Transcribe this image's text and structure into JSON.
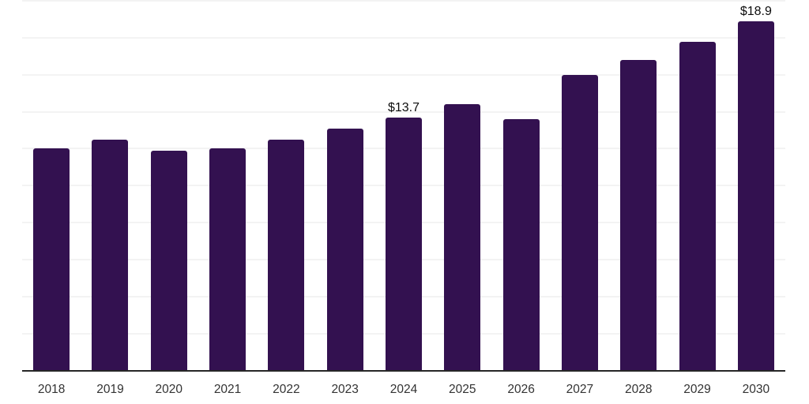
{
  "chart_data": {
    "type": "bar",
    "title": "",
    "xlabel": "",
    "ylabel": "",
    "categories": [
      "2018",
      "2019",
      "2020",
      "2021",
      "2022",
      "2023",
      "2024",
      "2025",
      "2026",
      "2027",
      "2028",
      "2029",
      "2030"
    ],
    "values": [
      12.0,
      12.5,
      11.9,
      12.0,
      12.5,
      13.1,
      13.7,
      14.4,
      13.6,
      16.0,
      16.8,
      17.8,
      18.9
    ],
    "annotations": [
      {
        "category": "2024",
        "text": "$13.7"
      },
      {
        "category": "2030",
        "text": "$18.9"
      }
    ],
    "ylim": [
      0,
      20
    ],
    "grid_step": 2,
    "grid": "on",
    "y_axis_labels": "hidden",
    "legend": "none",
    "colors": {
      "bar": "#331150",
      "gridline": "#f3f3f3",
      "axis_line": "#262626",
      "tick_label": "#333333",
      "data_label": "#0d0d0d",
      "background": "#ffffff"
    }
  }
}
